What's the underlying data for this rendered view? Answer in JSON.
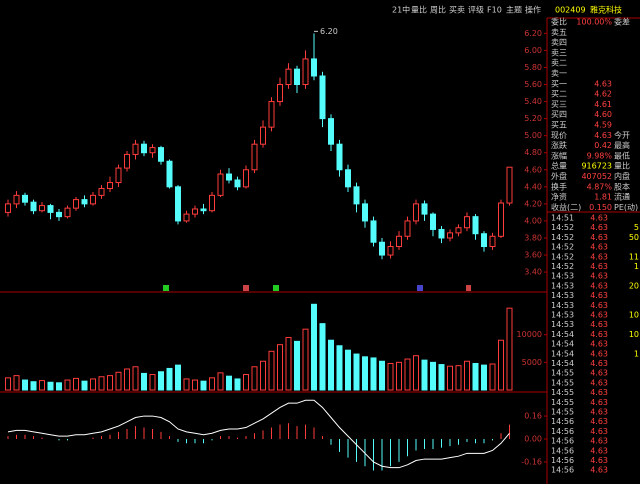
{
  "toolbar": [
    "21中",
    "量比",
    "周比",
    "买卖",
    "评级",
    "F10",
    "主题",
    "操作"
  ],
  "price_panel": {
    "ylim": [
      3.19,
      6.38
    ],
    "yticks": [
      {
        "value": 6.2,
        "label": "6.20"
      },
      {
        "value": 6.0,
        "label": "6.00"
      },
      {
        "value": 5.8,
        "label": "5.80"
      },
      {
        "value": 5.6,
        "label": "5.60"
      },
      {
        "value": 5.4,
        "label": "5.40"
      },
      {
        "value": 5.2,
        "label": "5.20"
      },
      {
        "value": 5.0,
        "label": "5.00"
      },
      {
        "value": 4.8,
        "label": "4.80"
      },
      {
        "value": 4.6,
        "label": "4.60"
      },
      {
        "value": 4.4,
        "label": "4.40"
      },
      {
        "value": 4.2,
        "label": "4.20"
      },
      {
        "value": 4.0,
        "label": "4.00"
      },
      {
        "value": 3.8,
        "label": "3.80"
      },
      {
        "value": 3.6,
        "label": "3.60"
      },
      {
        "value": 3.4,
        "label": "3.40"
      }
    ],
    "peak_label": "6.20",
    "up_color": "#ff3c3c",
    "down_color": "#54fcfc",
    "candles": [
      [
        4.1,
        4.2,
        4.25,
        4.05
      ],
      [
        4.2,
        4.3,
        4.35,
        4.15
      ],
      [
        4.3,
        4.22,
        4.33,
        4.18
      ],
      [
        4.22,
        4.12,
        4.25,
        4.08
      ],
      [
        4.12,
        4.18,
        4.22,
        4.1
      ],
      [
        4.18,
        4.1,
        4.2,
        4.02
      ],
      [
        4.1,
        4.05,
        4.14,
        4.0
      ],
      [
        4.05,
        4.15,
        4.18,
        4.03
      ],
      [
        4.15,
        4.25,
        4.28,
        4.12
      ],
      [
        4.25,
        4.2,
        4.3,
        4.16
      ],
      [
        4.2,
        4.3,
        4.34,
        4.18
      ],
      [
        4.3,
        4.38,
        4.42,
        4.26
      ],
      [
        4.38,
        4.45,
        4.52,
        4.34
      ],
      [
        4.45,
        4.62,
        4.66,
        4.4
      ],
      [
        4.62,
        4.78,
        4.82,
        4.58
      ],
      [
        4.78,
        4.9,
        4.95,
        4.72
      ],
      [
        4.9,
        4.8,
        4.94,
        4.76
      ],
      [
        4.8,
        4.86,
        4.9,
        4.74
      ],
      [
        4.86,
        4.7,
        4.88,
        4.66
      ],
      [
        4.7,
        4.4,
        4.72,
        4.38
      ],
      [
        4.4,
        4.0,
        4.42,
        3.96
      ],
      [
        4.0,
        4.08,
        4.12,
        3.98
      ],
      [
        4.08,
        4.14,
        4.18,
        4.04
      ],
      [
        4.14,
        4.12,
        4.2,
        4.08
      ],
      [
        4.12,
        4.3,
        4.34,
        4.1
      ],
      [
        4.3,
        4.55,
        4.6,
        4.28
      ],
      [
        4.55,
        4.48,
        4.62,
        4.44
      ],
      [
        4.48,
        4.4,
        4.52,
        4.36
      ],
      [
        4.4,
        4.6,
        4.65,
        4.38
      ],
      [
        4.6,
        4.9,
        4.95,
        4.56
      ],
      [
        4.9,
        5.1,
        5.18,
        4.86
      ],
      [
        5.1,
        5.4,
        5.45,
        5.05
      ],
      [
        5.4,
        5.6,
        5.68,
        5.35
      ],
      [
        5.6,
        5.78,
        5.85,
        5.55
      ],
      [
        5.78,
        5.6,
        5.82,
        5.5
      ],
      [
        5.6,
        5.9,
        6.0,
        5.55
      ],
      [
        5.9,
        5.7,
        6.2,
        5.65
      ],
      [
        5.7,
        5.2,
        5.75,
        5.1
      ],
      [
        5.2,
        4.9,
        5.25,
        4.82
      ],
      [
        4.9,
        4.6,
        4.95,
        4.52
      ],
      [
        4.6,
        4.4,
        4.66,
        4.34
      ],
      [
        4.4,
        4.2,
        4.45,
        4.1
      ],
      [
        4.2,
        4.0,
        4.25,
        3.92
      ],
      [
        4.0,
        3.75,
        4.05,
        3.7
      ],
      [
        3.75,
        3.6,
        3.8,
        3.55
      ],
      [
        3.6,
        3.7,
        3.76,
        3.56
      ],
      [
        3.7,
        3.82,
        3.88,
        3.66
      ],
      [
        3.82,
        4.0,
        4.05,
        3.78
      ],
      [
        4.0,
        4.2,
        4.25,
        3.96
      ],
      [
        4.2,
        4.08,
        4.24,
        4.0
      ],
      [
        4.08,
        3.9,
        4.1,
        3.82
      ],
      [
        3.9,
        3.8,
        3.94,
        3.74
      ],
      [
        3.8,
        3.86,
        3.9,
        3.76
      ],
      [
        3.86,
        3.92,
        3.96,
        3.82
      ],
      [
        3.92,
        4.05,
        4.1,
        3.88
      ],
      [
        4.05,
        3.85,
        4.08,
        3.78
      ],
      [
        3.85,
        3.7,
        3.88,
        3.64
      ],
      [
        3.7,
        3.82,
        3.86,
        3.66
      ],
      [
        3.82,
        4.21,
        4.25,
        3.8
      ],
      [
        4.21,
        4.63,
        4.63,
        4.18
      ]
    ]
  },
  "volume_panel": {
    "ylim": [
      0,
      17000
    ],
    "yticks": [
      5000,
      10000
    ],
    "values": [
      2200,
      2600,
      1800,
      1500,
      1700,
      1400,
      1300,
      1800,
      2100,
      1600,
      2000,
      2400,
      2600,
      3200,
      3800,
      4200,
      3000,
      2800,
      3300,
      3900,
      4500,
      2000,
      1800,
      1600,
      2200,
      3100,
      2500,
      2000,
      2800,
      4200,
      5200,
      7000,
      8200,
      9500,
      8800,
      11000,
      15500,
      12000,
      9000,
      8000,
      7200,
      6500,
      6000,
      5800,
      5200,
      4800,
      5000,
      5600,
      6200,
      5400,
      5000,
      4600,
      4300,
      4400,
      5200,
      4800,
      4500,
      4700,
      9000,
      14800
    ]
  },
  "macd_panel": {
    "ylim": [
      -0.3,
      0.3
    ],
    "yticks": [
      0.16,
      {
        "value": 0,
        "label": "0.00"
      },
      -0.16
    ],
    "hist": [
      0.02,
      0.03,
      0.03,
      0.02,
      0.01,
      0.0,
      -0.01,
      -0.01,
      0.0,
      0.0,
      0.01,
      0.02,
      0.03,
      0.05,
      0.07,
      0.09,
      0.08,
      0.07,
      0.05,
      0.02,
      -0.02,
      -0.03,
      -0.03,
      -0.03,
      -0.01,
      0.02,
      0.02,
      0.01,
      0.02,
      0.04,
      0.06,
      0.08,
      0.1,
      0.11,
      0.09,
      0.1,
      0.08,
      0.02,
      -0.04,
      -0.09,
      -0.13,
      -0.16,
      -0.19,
      -0.22,
      -0.22,
      -0.19,
      -0.16,
      -0.12,
      -0.08,
      -0.07,
      -0.07,
      -0.06,
      -0.05,
      -0.04,
      -0.02,
      -0.03,
      -0.03,
      -0.01,
      0.04,
      0.1
    ],
    "dif": [
      0.05,
      0.06,
      0.06,
      0.05,
      0.04,
      0.03,
      0.02,
      0.02,
      0.03,
      0.03,
      0.04,
      0.05,
      0.07,
      0.09,
      0.12,
      0.15,
      0.16,
      0.16,
      0.15,
      0.12,
      0.07,
      0.05,
      0.04,
      0.03,
      0.04,
      0.06,
      0.07,
      0.07,
      0.08,
      0.11,
      0.14,
      0.18,
      0.22,
      0.25,
      0.25,
      0.27,
      0.27,
      0.22,
      0.15,
      0.08,
      0.02,
      -0.04,
      -0.1,
      -0.16,
      -0.19,
      -0.2,
      -0.2,
      -0.18,
      -0.15,
      -0.14,
      -0.14,
      -0.14,
      -0.13,
      -0.12,
      -0.1,
      -0.1,
      -0.1,
      -0.08,
      -0.03,
      0.04
    ],
    "dif_color": "#ffffff"
  },
  "quote": {
    "code": "002409",
    "name": "雅克科技",
    "rows": [
      [
        "委比",
        "100.00%",
        "委差"
      ],
      [
        "卖五"
      ],
      [
        "卖四"
      ],
      [
        "卖三"
      ],
      [
        "卖二"
      ],
      [
        "卖一"
      ],
      [
        "买一",
        "4.63"
      ],
      [
        "买二",
        "4.62"
      ],
      [
        "买三",
        "4.61"
      ],
      [
        "买四",
        "4.60"
      ],
      [
        "买五",
        "4.59"
      ],
      [
        "现价",
        "4.63",
        "今开"
      ],
      [
        "涨跌",
        "0.42",
        "最高"
      ],
      [
        "涨幅",
        "9.98%",
        "最低"
      ],
      [
        "总量",
        "916723",
        "量比"
      ],
      [
        "外盘",
        "407052",
        "内盘"
      ],
      [
        "换手",
        "4.87%",
        "股本"
      ],
      [
        "净资",
        "1.81",
        "流通"
      ],
      [
        "收益(二)",
        "0.150",
        "PE(动)"
      ]
    ]
  },
  "ticks": [
    [
      "14:51",
      "4.63"
    ],
    [
      "14:52",
      "4.63",
      "5"
    ],
    [
      "14:52",
      "4.63",
      "50"
    ],
    [
      "14:52",
      "4.63"
    ],
    [
      "14:52",
      "4.63",
      "11"
    ],
    [
      "14:52",
      "4.63",
      "1"
    ],
    [
      "14:53",
      "4.63"
    ],
    [
      "14:53",
      "4.63",
      "20"
    ],
    [
      "14:53",
      "4.63"
    ],
    [
      "14:53",
      "4.63"
    ],
    [
      "14:53",
      "4.63",
      "10"
    ],
    [
      "14:53",
      "4.63"
    ],
    [
      "14:54",
      "4.63",
      "10"
    ],
    [
      "14:54",
      "4.63"
    ],
    [
      "14:54",
      "4.63",
      "1"
    ],
    [
      "14:54",
      "4.63"
    ],
    [
      "14:55",
      "4.63"
    ],
    [
      "14:55",
      "4.63"
    ],
    [
      "14:55",
      "4.63"
    ],
    [
      "14:55",
      "4.63"
    ],
    [
      "14:55",
      "4.63"
    ],
    [
      "14:56",
      "4.63"
    ],
    [
      "14:56",
      "4.63"
    ],
    [
      "14:56",
      "4.63"
    ],
    [
      "14:56",
      "4.63"
    ],
    [
      "14:56",
      "4.63"
    ],
    [
      "14:56",
      "4.63"
    ]
  ]
}
